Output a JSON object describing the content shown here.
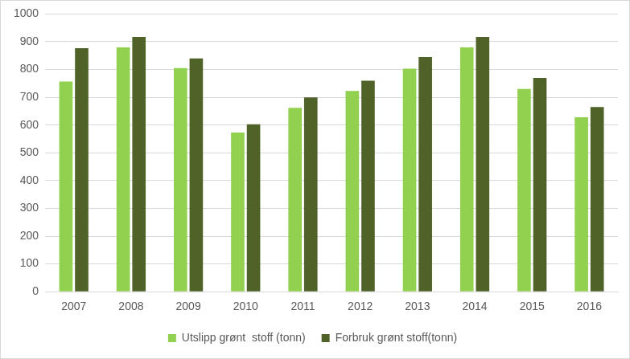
{
  "chart_data": {
    "type": "bar",
    "categories": [
      "2007",
      "2008",
      "2009",
      "2010",
      "2011",
      "2012",
      "2013",
      "2014",
      "2015",
      "2016"
    ],
    "series": [
      {
        "name": "Utslipp grønt  stoff (tonn)",
        "color": "#92d050",
        "values": [
          757,
          880,
          805,
          573,
          662,
          723,
          803,
          880,
          730,
          628
        ]
      },
      {
        "name": "Forbruk grønt stoff(tonn)",
        "color": "#4f6228",
        "values": [
          877,
          917,
          840,
          603,
          700,
          760,
          845,
          917,
          770,
          665
        ]
      }
    ],
    "ylim": [
      0,
      1000
    ],
    "yticks": [
      0,
      100,
      200,
      300,
      400,
      500,
      600,
      700,
      800,
      900,
      1000
    ],
    "grid": true,
    "legend": "bottom"
  }
}
